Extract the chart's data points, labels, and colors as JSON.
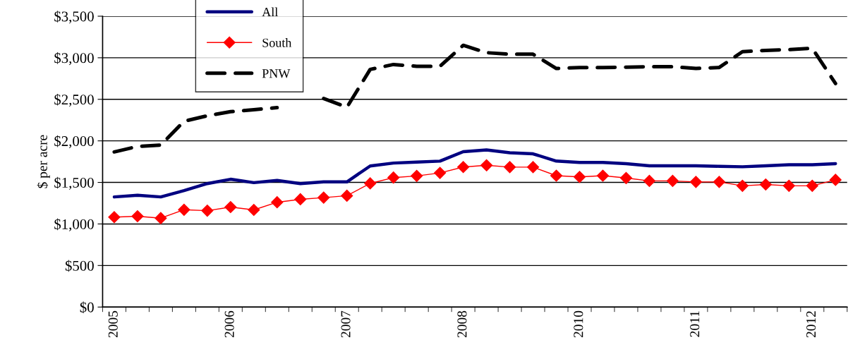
{
  "chart_data": {
    "type": "line",
    "ylabel": "$ per acre",
    "categories": [
      "2005",
      null,
      null,
      null,
      null,
      "2006",
      null,
      null,
      null,
      null,
      "2007",
      null,
      null,
      null,
      null,
      "2008",
      null,
      null,
      null,
      null,
      "2010",
      null,
      null,
      null,
      null,
      "2011",
      null,
      null,
      null,
      null,
      "2012",
      null
    ],
    "ylim": [
      0,
      3500
    ],
    "yticks": [
      {
        "value": 0,
        "label": "$0"
      },
      {
        "value": 500,
        "label": "$500"
      },
      {
        "value": 1000,
        "label": "$1,000"
      },
      {
        "value": 1500,
        "label": "$1,500"
      },
      {
        "value": 2000,
        "label": "$2,000"
      },
      {
        "value": 2500,
        "label": "$2,500"
      },
      {
        "value": 3000,
        "label": "$3,000"
      },
      {
        "value": 3500,
        "label": "$3,500"
      }
    ],
    "grid": "y",
    "legend": "top left",
    "series": [
      {
        "name": "All",
        "color": "#000080",
        "line_style": "solid",
        "marker": "none",
        "values": [
          1325,
          1346,
          1325,
          1401,
          1486,
          1538,
          1497,
          1524,
          1486,
          1506,
          1506,
          1698,
          1733,
          1744,
          1756,
          1870,
          1891,
          1857,
          1844,
          1757,
          1741,
          1741,
          1725,
          1700,
          1700,
          1700,
          1694,
          1688,
          1700,
          1713,
          1713,
          1725
        ]
      },
      {
        "name": "South",
        "color": "#ff0000",
        "line_style": "solid",
        "marker": "diamond",
        "values": [
          1082,
          1093,
          1070,
          1171,
          1160,
          1203,
          1169,
          1261,
          1297,
          1317,
          1340,
          1488,
          1558,
          1578,
          1614,
          1685,
          1706,
          1684,
          1684,
          1581,
          1566,
          1581,
          1553,
          1518,
          1518,
          1506,
          1506,
          1459,
          1475,
          1459,
          1459,
          1531
        ]
      },
      {
        "name": "PNW",
        "color": "#000000",
        "line_style": "dashed",
        "marker": "none",
        "values": [
          1867,
          1933,
          1950,
          2236,
          2302,
          2351,
          2375,
          2400,
          null,
          2510,
          2404,
          2860,
          2919,
          2898,
          2898,
          3150,
          3061,
          3043,
          3043,
          2871,
          2883,
          2883,
          2886,
          2892,
          2892,
          2871,
          2883,
          3073,
          3089,
          3098,
          3114,
          2690
        ]
      }
    ]
  }
}
